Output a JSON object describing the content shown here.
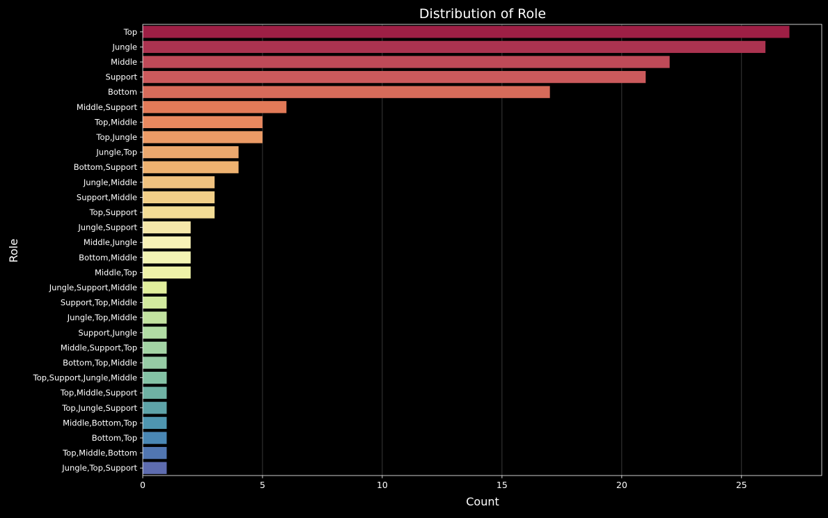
{
  "chart_data": {
    "type": "bar",
    "orientation": "horizontal",
    "title": "Distribution of Role",
    "xlabel": "Count",
    "ylabel": "Role",
    "xlim": [
      0,
      28.35
    ],
    "xticks": [
      0,
      5,
      10,
      15,
      20,
      25
    ],
    "grid": "vertical",
    "legend": "none",
    "background": "#000000",
    "text_color": "#ffffff",
    "categories": [
      "Top",
      "Jungle",
      "Middle",
      "Support",
      "Bottom",
      "Middle,Support",
      "Top,Middle",
      "Top,Jungle",
      "Jungle,Top",
      "Bottom,Support",
      "Jungle,Middle",
      "Support,Middle",
      "Top,Support",
      "Jungle,Support",
      "Middle,Jungle",
      "Bottom,Middle",
      "Middle,Top",
      "Jungle,Support,Middle",
      "Support,Top,Middle",
      "Jungle,Top,Middle",
      "Support,Jungle",
      "Middle,Support,Top",
      "Bottom,Top,Middle",
      "Top,Support,Jungle,Middle",
      "Top,Middle,Support",
      "Top,Jungle,Support",
      "Middle,Bottom,Top",
      "Bottom,Top",
      "Top,Middle,Bottom",
      "Jungle,Top,Support"
    ],
    "values": [
      27,
      26,
      22,
      21,
      17,
      6,
      5,
      5,
      4,
      4,
      3,
      3,
      3,
      2,
      2,
      2,
      2,
      1,
      1,
      1,
      1,
      1,
      1,
      1,
      1,
      1,
      1,
      1,
      1,
      1
    ],
    "colors": [
      "#9e1f45",
      "#ab3350",
      "#bf4a58",
      "#cb5a5c",
      "#d76b5a",
      "#e27a58",
      "#e8885f",
      "#ec9b66",
      "#eba86e",
      "#eeb270",
      "#f0c27f",
      "#f2cf88",
      "#f3dc95",
      "#f5e7aa",
      "#f7f2b7",
      "#f3f4b4",
      "#eef2a8",
      "#e1ef9c",
      "#d2ea9e",
      "#c2e2a0",
      "#b1dca4",
      "#a3d3a4",
      "#96cba5",
      "#84c2a5",
      "#6fb2a4",
      "#5ea3a8",
      "#4f96b0",
      "#4a87b4",
      "#5176b1",
      "#5e6caf"
    ]
  }
}
